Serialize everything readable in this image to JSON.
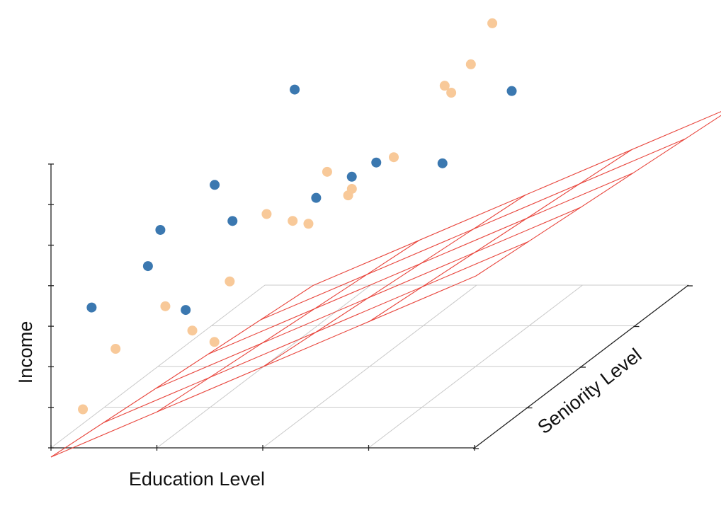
{
  "chart_data": {
    "type": "scatter",
    "title": "",
    "xlabel": "Education Level",
    "ylabel": "Seniority Level",
    "zlabel": "Income",
    "tick_labels_shown": false,
    "grid": true,
    "regression_plane": true,
    "x_ticks": [
      0,
      1,
      2,
      3,
      4
    ],
    "y_ticks": [
      0,
      1,
      2,
      3,
      4
    ],
    "z_ticks": [
      0,
      1,
      2,
      3,
      4,
      5,
      6,
      7
    ],
    "series": [
      {
        "role": "above-plane",
        "color": "#3b78b0",
        "points": [
          {
            "x": 1.06,
            "y": 0.42,
            "z": 2.98
          },
          {
            "x": 1.13,
            "y": 2.32,
            "z": 6.51
          },
          {
            "x": 1.86,
            "y": 2.4,
            "z": 4.63
          },
          {
            "x": 1.57,
            "y": 1.85,
            "z": 4.31
          },
          {
            "x": 1.74,
            "y": 2.18,
            "z": 4.5
          },
          {
            "x": 0.79,
            "y": 1.83,
            "z": 3.76
          },
          {
            "x": 0.35,
            "y": 1.12,
            "z": 3.36
          },
          {
            "x": 0.46,
            "y": 2.15,
            "z": 4.33
          },
          {
            "x": 0.24,
            "y": 1.57,
            "z": 3.8
          },
          {
            "x": 0.0,
            "y": 0.76,
            "z": 2.7
          },
          {
            "x": 2.71,
            "y": 3.25,
            "z": 5.54
          },
          {
            "x": 2.45,
            "y": 2.47,
            "z": 4.54
          },
          {
            "x": 2.69,
            "y": 3.63,
            "z": 7.76
          }
        ]
      },
      {
        "role": "below-plane",
        "color": "#f8c999",
        "points": [
          {
            "x": 1.67,
            "y": 2.32,
            "z": 4.06
          },
          {
            "x": 0.9,
            "y": 2.25,
            "z": 3.51
          },
          {
            "x": 1.3,
            "y": 2.24,
            "z": 3.28
          },
          {
            "x": 1.28,
            "y": 2.63,
            "z": 4.17
          },
          {
            "x": 1.04,
            "y": 2.46,
            "z": 3.13
          },
          {
            "x": 1.65,
            "y": 2.29,
            "z": 3.93
          },
          {
            "x": 1.2,
            "y": 0.68,
            "z": 1.93
          },
          {
            "x": 0.86,
            "y": 0.94,
            "z": 1.95
          },
          {
            "x": 0.88,
            "y": 1.6,
            "z": 2.5
          },
          {
            "x": 0.16,
            "y": 0.28,
            "z": 0.67
          },
          {
            "x": 0.12,
            "y": 0.97,
            "z": 1.47
          },
          {
            "x": 0.58,
            "y": 0.99,
            "z": 2.5
          },
          {
            "x": 2.81,
            "y": 3.76,
            "z": 7.9
          },
          {
            "x": 2.37,
            "y": 3.56,
            "z": 6.9
          },
          {
            "x": 1.91,
            "y": 3.58,
            "z": 5.34
          },
          {
            "x": 2.42,
            "y": 3.06,
            "z": 6.39
          },
          {
            "x": 2.25,
            "y": 3.03,
            "z": 5.72
          },
          {
            "x": 1.98,
            "y": 2.49,
            "z": 4.67
          }
        ]
      }
    ]
  },
  "colors": {
    "plane": "#e8453c",
    "grid": "#c9c9c9",
    "axis": "#222222"
  }
}
